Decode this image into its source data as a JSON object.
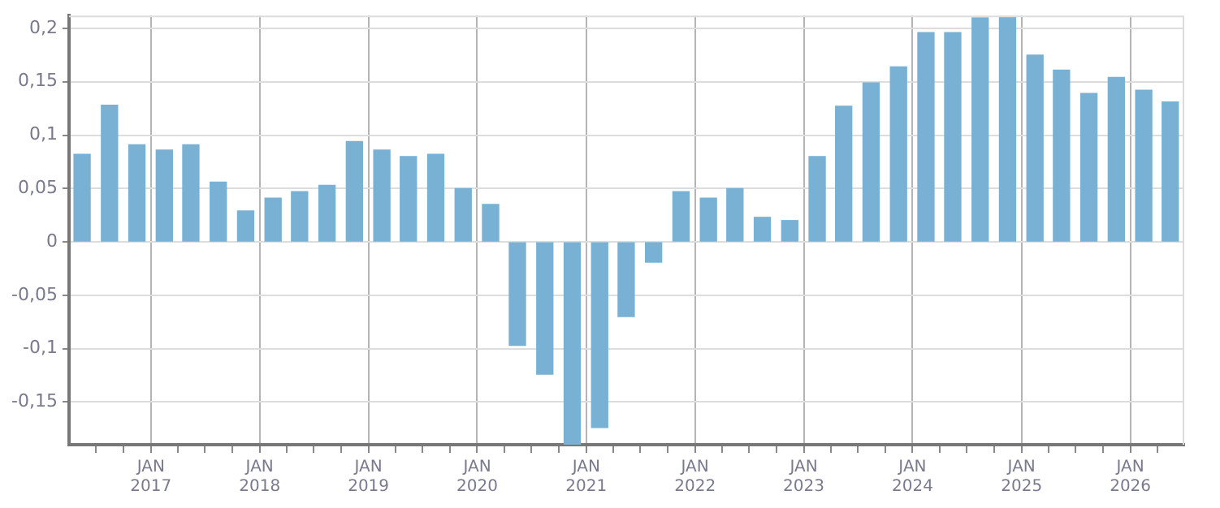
{
  "chart_data": {
    "type": "bar",
    "x": [
      "2016-05-15",
      "2016-08-15",
      "2016-11-15",
      "2017-02-15",
      "2017-05-15",
      "2017-08-15",
      "2017-11-15",
      "2018-02-15",
      "2018-05-15",
      "2018-08-15",
      "2018-11-15",
      "2019-02-15",
      "2019-05-15",
      "2019-08-15",
      "2019-11-15",
      "2020-02-15",
      "2020-05-15",
      "2020-08-15",
      "2020-11-15",
      "2021-02-15",
      "2021-05-15",
      "2021-08-15",
      "2021-11-15",
      "2022-02-15",
      "2022-05-15",
      "2022-08-15",
      "2022-11-15",
      "2023-02-15",
      "2023-05-15",
      "2023-08-15",
      "2023-11-15",
      "2024-02-15",
      "2024-05-15",
      "2024-08-15",
      "2024-11-15",
      "2025-02-15",
      "2025-05-15",
      "2025-08-15",
      "2025-11-15",
      "2026-02-15",
      "2026-05-15"
    ],
    "values": [
      0.082,
      0.128,
      0.091,
      0.086,
      0.091,
      0.056,
      0.029,
      0.041,
      0.047,
      0.053,
      0.094,
      0.086,
      0.08,
      0.082,
      0.05,
      0.035,
      -0.097,
      -0.124,
      -0.19,
      -0.174,
      -0.07,
      -0.019,
      0.047,
      0.041,
      0.05,
      0.023,
      0.02,
      0.08,
      0.127,
      0.149,
      0.164,
      0.196,
      0.196,
      0.21,
      0.211,
      0.175,
      0.161,
      0.139,
      0.154,
      0.142,
      0.131
    ],
    "color": "#78b1d3",
    "xlim": [
      "2016-04-01",
      "2026-07-01"
    ],
    "xticks": [
      {
        "value": "2016-07",
        "label": null
      },
      {
        "value": "2016-10",
        "label": null
      },
      {
        "value": "2017-01",
        "label": "JAN\n2017"
      },
      {
        "value": "2017-04",
        "label": null
      },
      {
        "value": "2017-07",
        "label": null
      },
      {
        "value": "2017-10",
        "label": null
      },
      {
        "value": "2018-01",
        "label": "JAN\n2018"
      },
      {
        "value": "2018-04",
        "label": null
      },
      {
        "value": "2018-07",
        "label": null
      },
      {
        "value": "2018-10",
        "label": null
      },
      {
        "value": "2019-01",
        "label": "JAN\n2019"
      },
      {
        "value": "2019-04",
        "label": null
      },
      {
        "value": "2019-07",
        "label": null
      },
      {
        "value": "2019-10",
        "label": null
      },
      {
        "value": "2020-01",
        "label": "JAN\n2020"
      },
      {
        "value": "2020-04",
        "label": null
      },
      {
        "value": "2020-07",
        "label": null
      },
      {
        "value": "2020-10",
        "label": null
      },
      {
        "value": "2021-01",
        "label": "JAN\n2021"
      },
      {
        "value": "2021-04",
        "label": null
      },
      {
        "value": "2021-07",
        "label": null
      },
      {
        "value": "2021-10",
        "label": null
      },
      {
        "value": "2022-01",
        "label": "JAN\n2022"
      },
      {
        "value": "2022-04",
        "label": null
      },
      {
        "value": "2022-07",
        "label": null
      },
      {
        "value": "2022-10",
        "label": null
      },
      {
        "value": "2023-01",
        "label": "JAN\n2023"
      },
      {
        "value": "2023-04",
        "label": null
      },
      {
        "value": "2023-07",
        "label": null
      },
      {
        "value": "2023-10",
        "label": null
      },
      {
        "value": "2024-01",
        "label": "JAN\n2024"
      },
      {
        "value": "2024-04",
        "label": null
      },
      {
        "value": "2024-07",
        "label": null
      },
      {
        "value": "2024-10",
        "label": null
      },
      {
        "value": "2025-01",
        "label": "JAN\n2025"
      },
      {
        "value": "2025-04",
        "label": null
      },
      {
        "value": "2025-07",
        "label": null
      },
      {
        "value": "2025-10",
        "label": null
      },
      {
        "value": "2026-01",
        "label": "JAN\n2026"
      },
      {
        "value": "2026-04",
        "label": null
      }
    ],
    "ylim": [
      -0.19,
      0.212
    ],
    "yticks": [
      {
        "value": -0.15,
        "label": "-0,15"
      },
      {
        "value": -0.1,
        "label": "-0,1"
      },
      {
        "value": -0.05,
        "label": "-0,05"
      },
      {
        "value": 0,
        "label": "0"
      },
      {
        "value": 0.05,
        "label": "0,05"
      },
      {
        "value": 0.1,
        "label": "0,1"
      },
      {
        "value": 0.15,
        "label": "0,15"
      },
      {
        "value": 0.2,
        "label": "0,2"
      }
    ],
    "grid": true,
    "legend": false
  }
}
